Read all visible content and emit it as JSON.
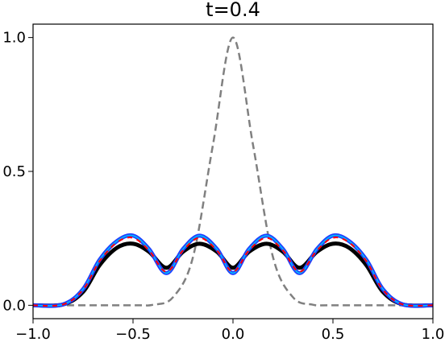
{
  "chart_data": {
    "type": "line",
    "title": "t=0.4",
    "xlabel": "",
    "ylabel": "",
    "xlim": [
      -1.0,
      1.0
    ],
    "ylim": [
      -0.05,
      1.05
    ],
    "grid": false,
    "x_ticks": [
      -1.0,
      -0.5,
      0.0,
      0.5,
      1.0
    ],
    "x_tick_labels": [
      "−1.0",
      "−0.5",
      "0.0",
      "0.5",
      "1.0"
    ],
    "y_ticks": [
      0.0,
      0.5,
      1.0
    ],
    "y_tick_labels": [
      "0.0",
      "0.5",
      "1.0"
    ],
    "colors": {
      "initial": "#808080",
      "black": "#000000",
      "blue": "#1f3fff",
      "cyan": "#00bfff",
      "red": "#ff0000",
      "magenta": "#cc22aa"
    },
    "series": [
      {
        "style": "dashed-gray",
        "x": [
          -1.0,
          -0.5,
          -0.4,
          -0.3,
          -0.2,
          -0.1,
          0.0,
          0.1,
          0.2,
          0.3,
          0.4,
          0.5,
          1.0
        ],
        "y": [
          0.0,
          0.0,
          0.002,
          0.03,
          0.18,
          0.6,
          1.0,
          0.6,
          0.18,
          0.03,
          0.002,
          0.0,
          0.0
        ]
      },
      {
        "style": "solid-black",
        "x": [
          -1.0,
          -0.85,
          -0.75,
          -0.667,
          -0.58,
          -0.5,
          -0.42,
          -0.333,
          -0.25,
          -0.167,
          -0.08,
          0.0,
          0.08,
          0.167,
          0.25,
          0.333,
          0.42,
          0.5,
          0.58,
          0.667,
          0.75,
          0.85,
          1.0
        ],
        "y": [
          0.0,
          0.003,
          0.05,
          0.15,
          0.215,
          0.23,
          0.2,
          0.14,
          0.2,
          0.23,
          0.2,
          0.14,
          0.2,
          0.23,
          0.2,
          0.14,
          0.2,
          0.23,
          0.215,
          0.15,
          0.05,
          0.003,
          0.0
        ]
      },
      {
        "style": "solid-blue",
        "x": [
          -1.0,
          -0.85,
          -0.75,
          -0.667,
          -0.58,
          -0.5,
          -0.42,
          -0.333,
          -0.25,
          -0.167,
          -0.08,
          0.0,
          0.08,
          0.167,
          0.25,
          0.333,
          0.42,
          0.5,
          0.58,
          0.667,
          0.75,
          0.85,
          1.0
        ],
        "y": [
          0.0,
          0.003,
          0.06,
          0.17,
          0.24,
          0.26,
          0.21,
          0.12,
          0.21,
          0.26,
          0.21,
          0.12,
          0.21,
          0.26,
          0.21,
          0.12,
          0.21,
          0.26,
          0.24,
          0.17,
          0.06,
          0.003,
          0.0
        ]
      },
      {
        "style": "dashed-red",
        "x": [
          -1.0,
          -0.85,
          -0.75,
          -0.667,
          -0.58,
          -0.5,
          -0.42,
          -0.333,
          -0.25,
          -0.167,
          -0.08,
          0.0,
          0.08,
          0.167,
          0.25,
          0.333,
          0.42,
          0.5,
          0.58,
          0.667,
          0.75,
          0.85,
          1.0
        ],
        "y": [
          0.0,
          0.003,
          0.058,
          0.165,
          0.235,
          0.252,
          0.205,
          0.125,
          0.205,
          0.252,
          0.205,
          0.125,
          0.205,
          0.252,
          0.205,
          0.125,
          0.205,
          0.252,
          0.235,
          0.165,
          0.058,
          0.003,
          0.0
        ]
      }
    ]
  }
}
